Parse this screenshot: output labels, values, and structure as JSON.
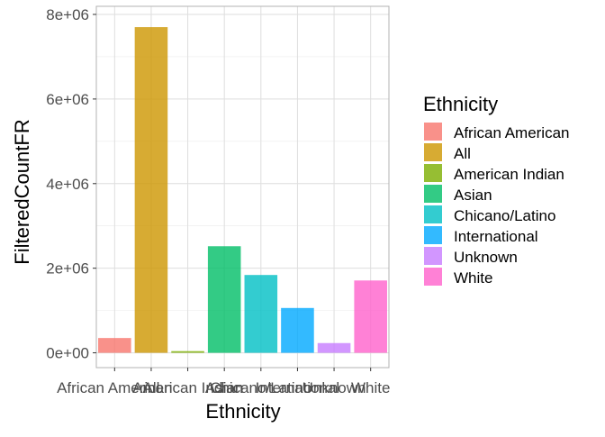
{
  "chart_data": {
    "type": "bar",
    "xlabel": "Ethnicity",
    "ylabel": "FilteredCountFR",
    "categories": [
      "African American",
      "All",
      "American Indian",
      "Asian",
      "Chicano/Latino",
      "International",
      "Unknown",
      "White"
    ],
    "values": [
      350000,
      7700000,
      40000,
      2520000,
      1840000,
      1060000,
      230000,
      1710000
    ],
    "colors": [
      "#F8766D",
      "#CD9600",
      "#7CAE00",
      "#00BE67",
      "#00BFC4",
      "#00A9FF",
      "#C77CFF",
      "#FF61CC"
    ],
    "ylim": [
      -350000,
      8000000
    ],
    "yticks": [
      0,
      2000000,
      4000000,
      6000000,
      8000000
    ],
    "ytick_labels": [
      "0e+00",
      "2e+06",
      "4e+06",
      "6e+06",
      "8e+06"
    ],
    "grid": true,
    "legend": {
      "title": "Ethnicity",
      "placement": "right",
      "entries": [
        "African American",
        "All",
        "American Indian",
        "Asian",
        "Chicano/Latino",
        "International",
        "Unknown",
        "White"
      ]
    }
  }
}
